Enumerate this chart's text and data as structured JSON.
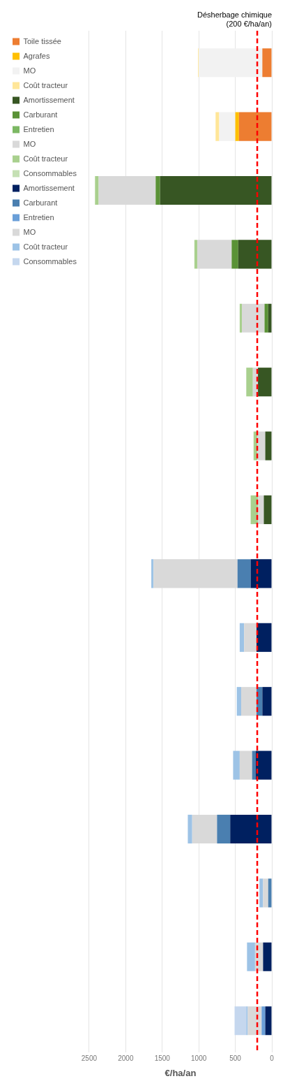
{
  "chart_data": {
    "type": "bar",
    "orientation": "horizontal",
    "stacked": true,
    "xlabel": "€/ha/an",
    "categories": [
      null,
      null,
      null,
      null,
      null,
      null,
      null,
      null,
      null,
      null,
      null,
      null,
      null,
      null,
      null,
      null
    ],
    "series": [
      {
        "name": "Toile tissée",
        "color": "#ed7d31",
        "values": [
          130,
          450,
          null,
          null,
          null,
          null,
          null,
          null,
          null,
          null,
          null,
          null,
          null,
          null,
          null,
          null
        ]
      },
      {
        "name": "Agrafes",
        "color": "#ffc000",
        "values": [
          null,
          50,
          null,
          null,
          null,
          null,
          null,
          null,
          null,
          null,
          null,
          null,
          null,
          null,
          null,
          null
        ]
      },
      {
        "name": "MO",
        "color": "#f2f2f2",
        "values": [
          870,
          220,
          null,
          null,
          null,
          null,
          null,
          null,
          null,
          null,
          null,
          null,
          null,
          null,
          null,
          null
        ]
      },
      {
        "name": "Coût tracteur",
        "color": "#ffe699",
        "values": [
          10,
          50,
          null,
          null,
          null,
          null,
          null,
          null,
          null,
          null,
          null,
          null,
          null,
          null,
          null,
          null
        ]
      },
      {
        "name": "Amortissement",
        "color": "#375623",
        "values": [
          null,
          null,
          1530,
          460,
          50,
          190,
          90,
          110,
          null,
          null,
          null,
          null,
          null,
          null,
          null,
          null
        ]
      },
      {
        "name": "Carburant",
        "color": "#5a9236",
        "values": [
          null,
          null,
          60,
          90,
          50,
          null,
          null,
          null,
          null,
          null,
          null,
          null,
          null,
          null,
          null,
          null
        ]
      },
      {
        "name": "Entretien",
        "color": "#7cb863",
        "values": [
          null,
          null,
          null,
          null,
          null,
          null,
          null,
          null,
          null,
          null,
          null,
          null,
          null,
          null,
          null,
          null
        ]
      },
      {
        "name": "MO",
        "color": "#d9d9d9",
        "values": [
          null,
          null,
          780,
          470,
          310,
          70,
          110,
          80,
          null,
          null,
          null,
          null,
          null,
          null,
          null,
          null
        ]
      },
      {
        "name": "Coût tracteur",
        "color": "#a9d08e",
        "values": [
          null,
          null,
          50,
          40,
          30,
          90,
          50,
          100,
          null,
          null,
          null,
          null,
          null,
          null,
          null,
          null
        ]
      },
      {
        "name": "Consommables",
        "color": "#c5e0b4",
        "values": [
          null,
          null,
          null,
          null,
          null,
          null,
          null,
          null,
          null,
          null,
          null,
          null,
          null,
          null,
          null,
          null
        ]
      },
      {
        "name": "Amortissement",
        "color": "#002060",
        "values": [
          null,
          null,
          null,
          null,
          null,
          null,
          null,
          null,
          290,
          210,
          130,
          220,
          570,
          null,
          120,
          90
        ]
      },
      {
        "name": "Carburant",
        "color": "#4a7fb0",
        "values": [
          null,
          null,
          null,
          null,
          null,
          null,
          null,
          null,
          180,
          null,
          80,
          50,
          180,
          50,
          null,
          null
        ]
      },
      {
        "name": "Entretien",
        "color": "#6a9fd8",
        "values": [
          null,
          null,
          null,
          null,
          null,
          null,
          null,
          null,
          null,
          null,
          null,
          null,
          null,
          null,
          null,
          50
        ]
      },
      {
        "name": "MO",
        "color": "#d9d9d9",
        "values": [
          null,
          null,
          null,
          null,
          null,
          null,
          null,
          null,
          1150,
          170,
          210,
          170,
          340,
          70,
          110,
          190
        ]
      },
      {
        "name": "Coût tracteur",
        "color": "#9dc3e6",
        "values": [
          null,
          null,
          null,
          null,
          null,
          null,
          null,
          null,
          30,
          60,
          60,
          90,
          60,
          50,
          110,
          20
        ]
      },
      {
        "name": "Consommables",
        "color": "#c5d7ee",
        "values": [
          null,
          null,
          null,
          null,
          null,
          null,
          null,
          null,
          null,
          null,
          null,
          null,
          null,
          null,
          null,
          160
        ]
      }
    ],
    "xlim": [
      2500,
      0
    ],
    "xticks": [
      0,
      500,
      1000,
      1500,
      2000,
      2500
    ],
    "grid": "x",
    "legend": "left",
    "ref_lines": [
      {
        "axis": "x",
        "value": 200,
        "label": "Désherbage chimique (200 €/ha/an)",
        "color": "#ff0000",
        "line_style": "dashed"
      }
    ]
  }
}
